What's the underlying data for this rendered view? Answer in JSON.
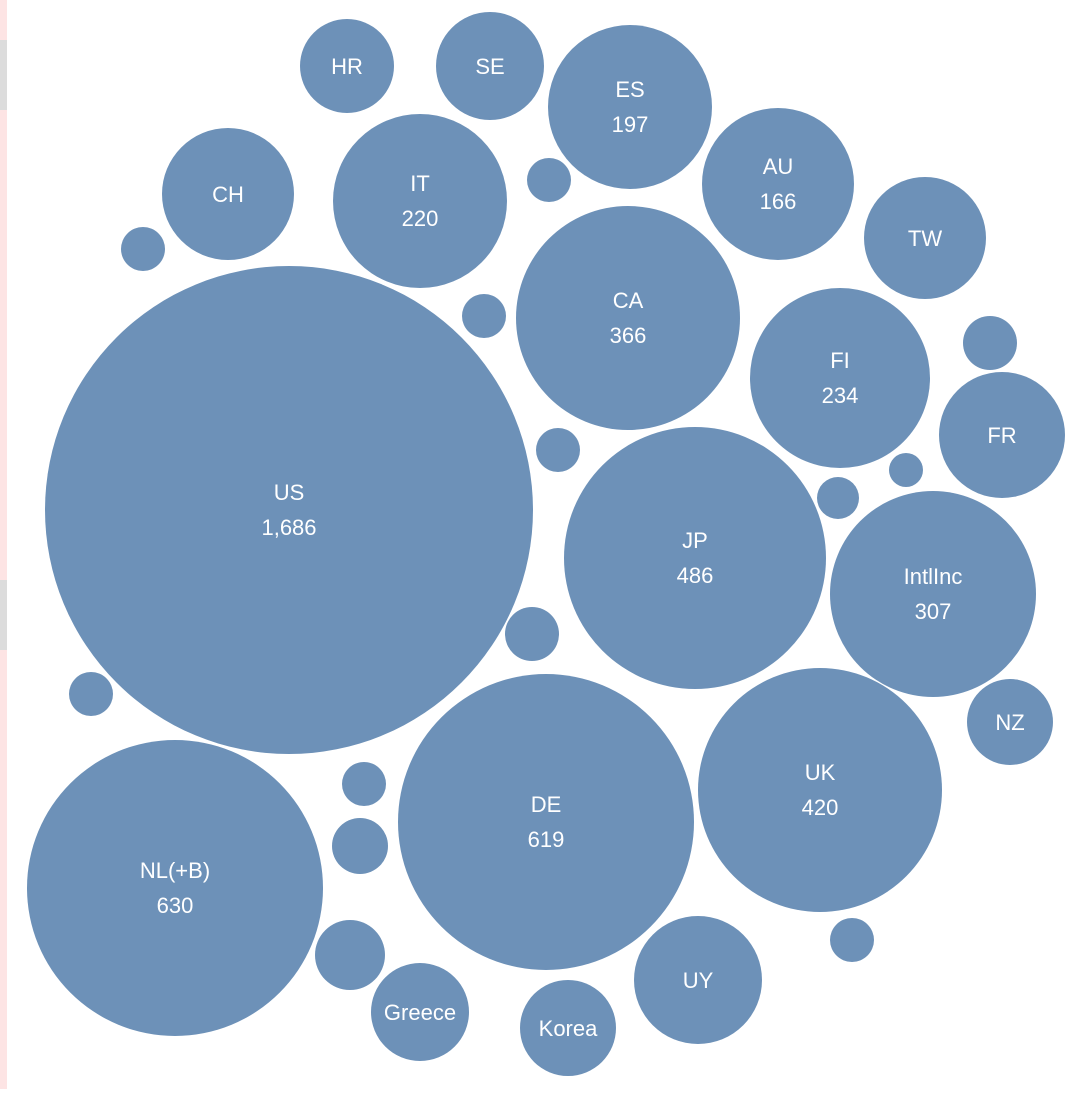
{
  "chart_data": {
    "type": "bubble",
    "title": "",
    "bubble_color": "#6d91b8",
    "label_color": "#ffffff",
    "bubbles": [
      {
        "label": "US",
        "value": 1686,
        "value_text": "1,686"
      },
      {
        "label": "NL(+B)",
        "value": 630,
        "value_text": "630"
      },
      {
        "label": "DE",
        "value": 619,
        "value_text": "619"
      },
      {
        "label": "JP",
        "value": 486,
        "value_text": "486"
      },
      {
        "label": "UK",
        "value": 420,
        "value_text": "420"
      },
      {
        "label": "CA",
        "value": 366,
        "value_text": "366"
      },
      {
        "label": "IntlInc",
        "value": 307,
        "value_text": "307"
      },
      {
        "label": "FI",
        "value": 234,
        "value_text": "234"
      },
      {
        "label": "IT",
        "value": 220,
        "value_text": "220"
      },
      {
        "label": "ES",
        "value": 197,
        "value_text": "197"
      },
      {
        "label": "AU",
        "value": 166,
        "value_text": "166"
      },
      {
        "label": "CH"
      },
      {
        "label": "TW"
      },
      {
        "label": "FR"
      },
      {
        "label": "SE"
      },
      {
        "label": "HR"
      },
      {
        "label": "UY"
      },
      {
        "label": "Korea"
      },
      {
        "label": "Greece"
      },
      {
        "label": "NZ"
      }
    ],
    "unlabeled_bubble_count": 18
  }
}
